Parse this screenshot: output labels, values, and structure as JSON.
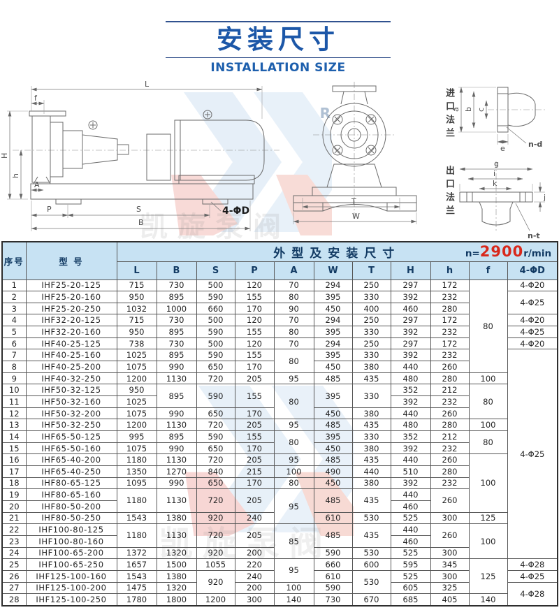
{
  "title": {
    "zh": "安装尺寸",
    "en": "INSTALLATION SIZE",
    "accent": "#1d5fad"
  },
  "drawing": {
    "side": {
      "dim_l": "L",
      "dim_f": "f",
      "dim_h_cap": "H",
      "dim_h": "h",
      "dim_a": "A",
      "dim_p": "P",
      "dim_s": "S",
      "dim_b": "B",
      "dim_holes": "4-ΦD"
    },
    "front": {
      "dim_t": "T",
      "dim_w": "W"
    },
    "inlet": {
      "label": "进口法兰",
      "dim_a": "a",
      "dim_b": "b",
      "dim_c": "c",
      "dim_e": "e",
      "dim_nd": "n-d"
    },
    "outlet": {
      "label": "出口法兰",
      "dim_g": "g",
      "dim_i": "i",
      "dim_k": "k",
      "dim_j": "j",
      "dim_nt": "n-t"
    }
  },
  "watermark": {
    "brand_text": "凯旋泵阀",
    "letter_r": "R"
  },
  "table": {
    "header_bg": "#c7e2f3",
    "corner_no": "序号",
    "corner_model": "型 号",
    "group_header": "外型及安装尺寸",
    "speed": {
      "prefix": "n=",
      "value": "2900",
      "suffix": "r/min",
      "color": "#d8281c"
    },
    "columns": [
      "L",
      "B",
      "S",
      "P",
      "A",
      "W",
      "T",
      "H",
      "h",
      "f",
      "4-ΦD"
    ],
    "rows": [
      {
        "no": "1",
        "model": "IHF25-20-125",
        "dims": [
          "715",
          "730",
          "500",
          "120",
          "70",
          "294",
          "250",
          "297",
          "172",
          {
            "v": "80",
            "rs": 8
          },
          "4-Φ20"
        ]
      },
      {
        "no": "2",
        "model": "IHF25-20-160",
        "dims": [
          "950",
          "895",
          "590",
          "155",
          "80",
          "395",
          "330",
          "392",
          "232",
          null,
          {
            "v": "4-Φ25",
            "rs": 2
          }
        ]
      },
      {
        "no": "3",
        "model": "IHF25-20-250",
        "dims": [
          "1032",
          "1000",
          "660",
          "170",
          "90",
          "450",
          "400",
          "460",
          "280",
          null,
          null
        ]
      },
      {
        "no": "4",
        "model": "IHF32-20-125",
        "dims": [
          "715",
          "730",
          "500",
          "120",
          "70",
          "294",
          "250",
          "297",
          "172",
          null,
          "4-Φ20"
        ]
      },
      {
        "no": "5",
        "model": "IHF32-20-160",
        "dims": [
          "950",
          "895",
          "590",
          "155",
          "80",
          "395",
          "330",
          "392",
          "232",
          null,
          "4-Φ25"
        ]
      },
      {
        "no": "6",
        "model": "IHF40-25-125",
        "dims": [
          "738",
          "730",
          "500",
          "120",
          "70",
          "294",
          "250",
          "297",
          "172",
          null,
          "4-Φ20"
        ]
      },
      {
        "no": "7",
        "model": "IHF40-25-160",
        "dims": [
          "1025",
          "895",
          "590",
          "155",
          {
            "v": "80",
            "rs": 2
          },
          "395",
          "330",
          "392",
          "232",
          null,
          {
            "v": "4-Φ25",
            "rs": 18
          }
        ]
      },
      {
        "no": "8",
        "model": "IHF40-25-200",
        "dims": [
          "1075",
          "990",
          "650",
          "170",
          null,
          "450",
          "380",
          "440",
          "260",
          null,
          null
        ]
      },
      {
        "no": "9",
        "model": "IHF40-32-250",
        "dims": [
          "1200",
          "1130",
          "720",
          "205",
          "95",
          "485",
          "435",
          "480",
          "280",
          "100",
          null
        ]
      },
      {
        "no": "10",
        "model": "IHF50-32-125",
        "dims": [
          "950",
          {
            "v": "895",
            "rs": 2
          },
          {
            "v": "590",
            "rs": 2
          },
          {
            "v": "155",
            "rs": 2
          },
          {
            "v": "80",
            "rs": 3
          },
          {
            "v": "395",
            "rs": 2
          },
          {
            "v": "330",
            "rs": 2
          },
          "352",
          "212",
          {
            "v": "80",
            "rs": 3
          },
          null
        ]
      },
      {
        "no": "11",
        "model": "IHF50-32-160",
        "dims": [
          "1025",
          null,
          null,
          null,
          null,
          null,
          null,
          "392",
          "232",
          null,
          null
        ]
      },
      {
        "no": "12",
        "model": "IHF50-32-200",
        "dims": [
          "1075",
          "990",
          "650",
          "170",
          null,
          "450",
          "380",
          "440",
          "260",
          null,
          null
        ]
      },
      {
        "no": "13",
        "model": "IHF50-32-250",
        "dims": [
          "1200",
          "1130",
          "720",
          "205",
          "95",
          "485",
          "435",
          "480",
          "280",
          "100",
          null
        ]
      },
      {
        "no": "14",
        "model": "IHF65-50-125",
        "dims": [
          "995",
          "895",
          "590",
          "155",
          {
            "v": "80",
            "rs": 2
          },
          "395",
          "330",
          "352",
          "212",
          {
            "v": "80",
            "rs": 2
          },
          null
        ]
      },
      {
        "no": "15",
        "model": "IHF65-50-160",
        "dims": [
          "1075",
          "990",
          "650",
          "170",
          null,
          "450",
          "380",
          "392",
          "232",
          null,
          null
        ]
      },
      {
        "no": "16",
        "model": "IHF65-40-200",
        "dims": [
          "1180",
          "1130",
          "720",
          "205",
          "95",
          "485",
          "435",
          "440",
          "260",
          {
            "v": "100",
            "rs": 5
          },
          null
        ]
      },
      {
        "no": "17",
        "model": "IHF65-40-250",
        "dims": [
          "1350",
          "1270",
          "840",
          "215",
          "100",
          "490",
          "440",
          "510",
          "280",
          null,
          null
        ]
      },
      {
        "no": "18",
        "model": "IHF80-65-125",
        "dims": [
          "1095",
          "990",
          "650",
          "170",
          "80",
          "450",
          "380",
          "392",
          "232",
          null,
          null
        ]
      },
      {
        "no": "19",
        "model": "IHF80-65-160",
        "dims": [
          {
            "v": "1180",
            "rs": 2
          },
          {
            "v": "1130",
            "rs": 2
          },
          {
            "v": "720",
            "rs": 2
          },
          {
            "v": "205",
            "rs": 2
          },
          {
            "v": "95",
            "rs": 3
          },
          {
            "v": "485",
            "rs": 2
          },
          {
            "v": "435",
            "rs": 2
          },
          "440",
          {
            "v": "260",
            "rs": 2
          },
          null,
          null
        ]
      },
      {
        "no": "20",
        "model": "IHF80-50-200",
        "dims": [
          null,
          null,
          null,
          null,
          null,
          null,
          null,
          "460",
          null,
          null,
          null
        ]
      },
      {
        "no": "21",
        "model": "IHF80-50-250",
        "dims": [
          "1543",
          "1380",
          "920",
          "240",
          null,
          "610",
          "530",
          "525",
          "300",
          "125",
          null
        ]
      },
      {
        "no": "22",
        "model": "IHF100-80-125",
        "dims": [
          {
            "v": "1180",
            "rs": 2
          },
          {
            "v": "1130",
            "rs": 2
          },
          {
            "v": "720",
            "rs": 2
          },
          {
            "v": "205",
            "rs": 2
          },
          {
            "v": "85",
            "rs": 3
          },
          {
            "v": "485",
            "rs": 2
          },
          {
            "v": "435",
            "rs": 2
          },
          "440",
          {
            "v": "260",
            "rs": 2
          },
          {
            "v": "100",
            "rs": 3
          },
          null
        ]
      },
      {
        "no": "23",
        "model": "IHF100-80-160",
        "dims": [
          null,
          null,
          null,
          null,
          null,
          null,
          null,
          "460",
          null,
          null,
          null
        ]
      },
      {
        "no": "24",
        "model": "IHF100-65-200",
        "dims": [
          "1372",
          "1320",
          "920",
          "200",
          null,
          "590",
          "530",
          "525",
          "300",
          null,
          null
        ]
      },
      {
        "no": "25",
        "model": "IHF100-65-250",
        "dims": [
          "1657",
          "1500",
          "1055",
          "220",
          {
            "v": "95",
            "rs": 2
          },
          "660",
          "600",
          "595",
          "345",
          {
            "v": "125",
            "rs": 3
          },
          "4-Φ28"
        ]
      },
      {
        "no": "26",
        "model": "IHF125-100-160",
        "dims": [
          "1543",
          "1380",
          {
            "v": "920",
            "rs": 2
          },
          "240",
          null,
          "610",
          {
            "v": "530",
            "rs": 2
          },
          "525",
          "300",
          null,
          "4-Φ25"
        ]
      },
      {
        "no": "27",
        "model": "IHF125-100-200",
        "dims": [
          "1475",
          "1320",
          null,
          "200",
          "100",
          "590",
          null,
          "605",
          "325",
          null,
          {
            "v": "4-Φ28",
            "rs": 2
          }
        ]
      },
      {
        "no": "28",
        "model": "IHF125-100-250",
        "dims": [
          "1780",
          "1800",
          "1200",
          "300",
          "140",
          "730",
          "670",
          "685",
          "405",
          "140",
          null
        ]
      }
    ]
  }
}
